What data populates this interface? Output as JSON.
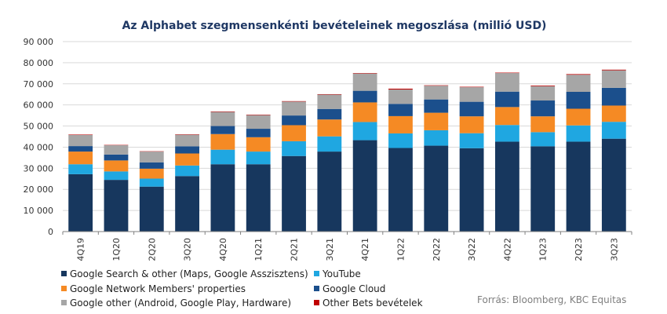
{
  "chart_data": {
    "type": "bar",
    "stacked": true,
    "title": "Az Alphabet szegmensenkénti bevételeinek  megoszlása (millió USD)",
    "categories": [
      "4Q19",
      "1Q20",
      "2Q20",
      "3Q20",
      "4Q20",
      "1Q21",
      "2Q21",
      "3Q21",
      "4Q21",
      "1Q22",
      "2Q22",
      "3Q22",
      "4Q22",
      "1Q23",
      "2Q23",
      "3Q23"
    ],
    "ylim": [
      0,
      90000
    ],
    "yticks": [
      "0",
      "10 000",
      "20 000",
      "30 000",
      "40 000",
      "50 000",
      "60 000",
      "70 000",
      "80 000",
      "90 000"
    ],
    "grid": true,
    "legend_position": "bottom",
    "series": [
      {
        "name": "Google Search & other (Maps, Google Asszisztens)",
        "color": "#17375e",
        "values": [
          27200,
          24500,
          21300,
          26300,
          31900,
          31900,
          35800,
          37900,
          43300,
          39600,
          40700,
          39500,
          42600,
          40400,
          42600,
          44000
        ]
      },
      {
        "name": "YouTube",
        "color": "#1fa7e1",
        "values": [
          4700,
          4000,
          3800,
          5000,
          6900,
          6000,
          7000,
          7200,
          8600,
          6900,
          7300,
          7100,
          7900,
          6700,
          7700,
          8000
        ]
      },
      {
        "name": "Google Network Members' properties",
        "color": "#f58a24",
        "values": [
          6000,
          5200,
          4700,
          5700,
          7400,
          6800,
          7600,
          8000,
          9300,
          8200,
          8300,
          8000,
          8500,
          7500,
          7900,
          7700
        ]
      },
      {
        "name": "Google Cloud",
        "color": "#1b4f8c",
        "values": [
          2600,
          2800,
          3000,
          3400,
          3800,
          4000,
          4600,
          5000,
          5500,
          5800,
          6300,
          6900,
          7300,
          7500,
          8000,
          8400
        ]
      },
      {
        "name": "Google other (Android, Google Play, Hardware)",
        "color": "#a6a6a6",
        "values": [
          5300,
          4400,
          5100,
          5500,
          6700,
          6500,
          6600,
          6800,
          8200,
          6800,
          6500,
          6900,
          8800,
          6800,
          8100,
          8300
        ]
      },
      {
        "name": "Other Bets bevételek",
        "color": "#c00000",
        "values": [
          200,
          150,
          150,
          180,
          200,
          200,
          200,
          200,
          200,
          400,
          200,
          200,
          200,
          300,
          300,
          300
        ]
      }
    ]
  },
  "source": "Forrás: Bloomberg, KBC Equitas"
}
